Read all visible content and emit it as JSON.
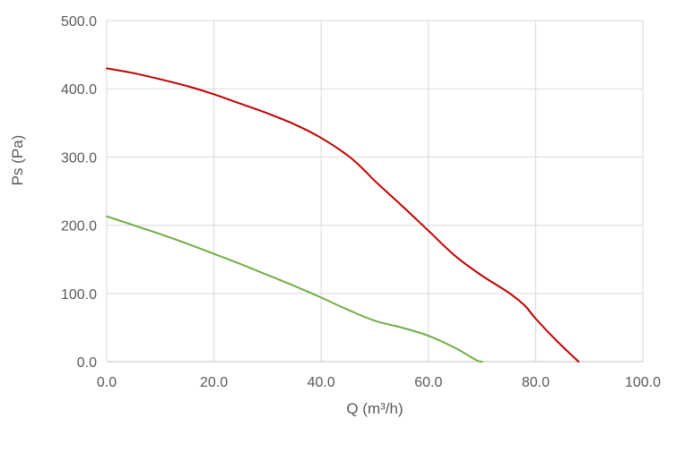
{
  "chart_data": {
    "type": "line",
    "title": "",
    "xlabel": "Q (m³/h)",
    "ylabel": "Ps (Pa)",
    "xlim": [
      0,
      100
    ],
    "ylim": [
      0,
      500
    ],
    "x_ticks": [
      "0.0",
      "20.0",
      "40.0",
      "60.0",
      "80.0",
      "100.0"
    ],
    "y_ticks": [
      "0.0",
      "100.0",
      "200.0",
      "300.0",
      "400.0",
      "500.0"
    ],
    "grid": true,
    "legend": "none",
    "series": [
      {
        "color": "#c00000",
        "points": [
          [
            0,
            430
          ],
          [
            5,
            423
          ],
          [
            10,
            414
          ],
          [
            15,
            404
          ],
          [
            20,
            392
          ],
          [
            25,
            378
          ],
          [
            30,
            364
          ],
          [
            35,
            348
          ],
          [
            40,
            328
          ],
          [
            45,
            302
          ],
          [
            48,
            281
          ],
          [
            50,
            265
          ],
          [
            55,
            229
          ],
          [
            60,
            192
          ],
          [
            65,
            155
          ],
          [
            70,
            126
          ],
          [
            75,
            101
          ],
          [
            78,
            82
          ],
          [
            80,
            63
          ],
          [
            84,
            30
          ],
          [
            88,
            0
          ]
        ]
      },
      {
        "color": "#70ad47",
        "points": [
          [
            0,
            213
          ],
          [
            5,
            200
          ],
          [
            10,
            187
          ],
          [
            15,
            173
          ],
          [
            20,
            158
          ],
          [
            25,
            143
          ],
          [
            30,
            127
          ],
          [
            35,
            111
          ],
          [
            40,
            94
          ],
          [
            45,
            76
          ],
          [
            50,
            60
          ],
          [
            55,
            50
          ],
          [
            60,
            38
          ],
          [
            65,
            20
          ],
          [
            69,
            2
          ],
          [
            70,
            0
          ]
        ]
      }
    ]
  }
}
